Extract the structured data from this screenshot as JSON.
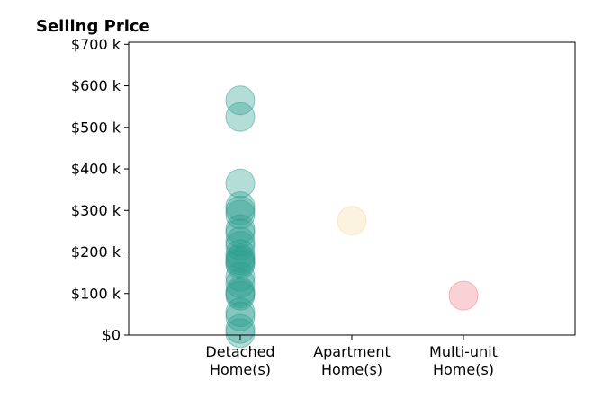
{
  "chart_data": {
    "type": "scatter",
    "title": "Selling Price",
    "xlabel": "",
    "ylabel": "",
    "categories": [
      [
        "Detached",
        "Home(s)"
      ],
      [
        "Apartment",
        "Home(s)"
      ],
      [
        "Multi-unit",
        "Home(s)"
      ]
    ],
    "xlim": [
      0,
      4
    ],
    "ylim": [
      0,
      705000
    ],
    "yticks": [
      0,
      100000,
      200000,
      300000,
      400000,
      500000,
      600000,
      700000
    ],
    "ytick_labels": [
      "$0",
      "$100 k",
      "$200 k",
      "$300 k",
      "$400 k",
      "$500 k",
      "$600 k",
      "$700 k"
    ],
    "grid": false,
    "series": [
      {
        "category_index": 0,
        "color": "#2a9d8f",
        "values": [
          565000,
          525000,
          365000,
          310000,
          300000,
          290000,
          255000,
          245000,
          225000,
          215000,
          195000,
          185000,
          180000,
          175000,
          170000,
          140000,
          125000,
          105000,
          100000,
          95000,
          55000,
          45000,
          15000,
          5000
        ]
      },
      {
        "category_index": 1,
        "color": "#f4d9a6",
        "values": [
          275000
        ]
      },
      {
        "category_index": 2,
        "color": "#f07c88",
        "values": [
          95000
        ]
      }
    ]
  }
}
